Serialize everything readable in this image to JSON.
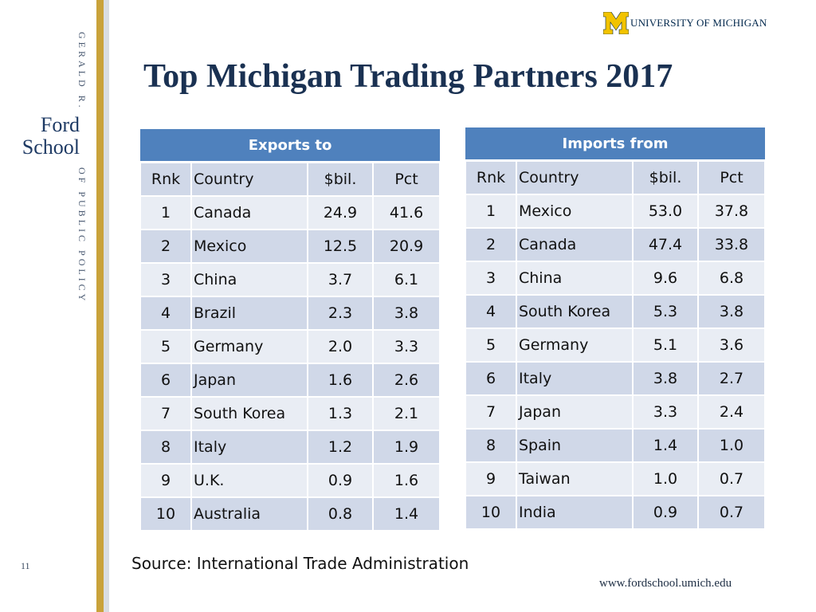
{
  "branding": {
    "vertical_top": "GERALD R.",
    "vertical_bottom": "OF PUBLIC POLICY",
    "ford_line1": "Ford",
    "ford_line2": "School",
    "um_logo_text": "UNIVERSITY OF MICHIGAN",
    "slide_number": "11",
    "website": "www.fordschool.umich.edu",
    "colors": {
      "gold": "#c9a23a",
      "navy": "#00274c",
      "header_blue": "#4f81bd"
    }
  },
  "title": "Top Michigan Trading Partners 2017",
  "exports": {
    "header": "Exports to",
    "columns": [
      "Rnk",
      "Country",
      "$bil.",
      "Pct"
    ],
    "rows": [
      [
        "1",
        "Canada",
        "24.9",
        "41.6"
      ],
      [
        "2",
        "Mexico",
        "12.5",
        "20.9"
      ],
      [
        "3",
        "China",
        "3.7",
        "6.1"
      ],
      [
        "4",
        "Brazil",
        "2.3",
        "3.8"
      ],
      [
        "5",
        "Germany",
        "2.0",
        "3.3"
      ],
      [
        "6",
        "Japan",
        "1.6",
        "2.6"
      ],
      [
        "7",
        "South Korea",
        "1.3",
        "2.1"
      ],
      [
        "8",
        "Italy",
        "1.2",
        "1.9"
      ],
      [
        "9",
        "U.K.",
        "0.9",
        "1.6"
      ],
      [
        "10",
        "Australia",
        "0.8",
        "1.4"
      ]
    ]
  },
  "imports": {
    "header": "Imports from",
    "columns": [
      "Rnk",
      "Country",
      "$bil.",
      "Pct"
    ],
    "rows": [
      [
        "1",
        "Mexico",
        "53.0",
        "37.8"
      ],
      [
        "2",
        "Canada",
        "47.4",
        "33.8"
      ],
      [
        "3",
        "China",
        "9.6",
        "6.8"
      ],
      [
        "4",
        "South Korea",
        "5.3",
        "3.8"
      ],
      [
        "5",
        "Germany",
        "5.1",
        "3.6"
      ],
      [
        "6",
        "Italy",
        "3.8",
        "2.7"
      ],
      [
        "7",
        "Japan",
        "3.3",
        "2.4"
      ],
      [
        "8",
        "Spain",
        "1.4",
        "1.0"
      ],
      [
        "9",
        "Taiwan",
        "1.0",
        "0.7"
      ],
      [
        "10",
        "India",
        "0.9",
        "0.7"
      ]
    ]
  },
  "source": "Source:  International Trade Administration"
}
